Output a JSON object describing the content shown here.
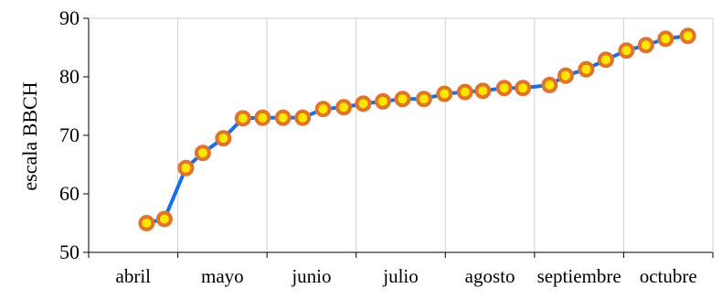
{
  "chart_data": {
    "type": "line",
    "ylabel": "escala BBCH",
    "xlabel": "",
    "title": "",
    "categories": [
      "abril",
      "mayo",
      "junio",
      "julio",
      "agosto",
      "septiembre",
      "octubre"
    ],
    "ylim": [
      50,
      90
    ],
    "yticks": [
      50,
      60,
      70,
      80,
      90
    ],
    "grid": "vertical",
    "series": [
      {
        "x": [
          0.65,
          0.85,
          1.09,
          1.28,
          1.51,
          1.73,
          1.95,
          2.18,
          2.4,
          2.63,
          2.86,
          3.08,
          3.3,
          3.52,
          3.76,
          3.99,
          4.22,
          4.42,
          4.66,
          4.87,
          5.17,
          5.35,
          5.58,
          5.8,
          6.03,
          6.25,
          6.47,
          6.72
        ],
        "values": [
          55,
          55.7,
          64.4,
          67,
          69.5,
          72.9,
          73,
          73,
          73,
          74.5,
          74.8,
          75.4,
          75.8,
          76.2,
          76.2,
          77.1,
          77.4,
          77.6,
          78.1,
          78.1,
          78.6,
          80.2,
          81.3,
          82.9,
          84.5,
          85.4,
          86.5,
          87
        ]
      }
    ],
    "colors": {
      "line": "#1a6ee8",
      "marker_fill": "#ffe600",
      "marker_stroke": "#e0742a",
      "grid": "#d0d0d0",
      "axis": "#000000"
    }
  }
}
